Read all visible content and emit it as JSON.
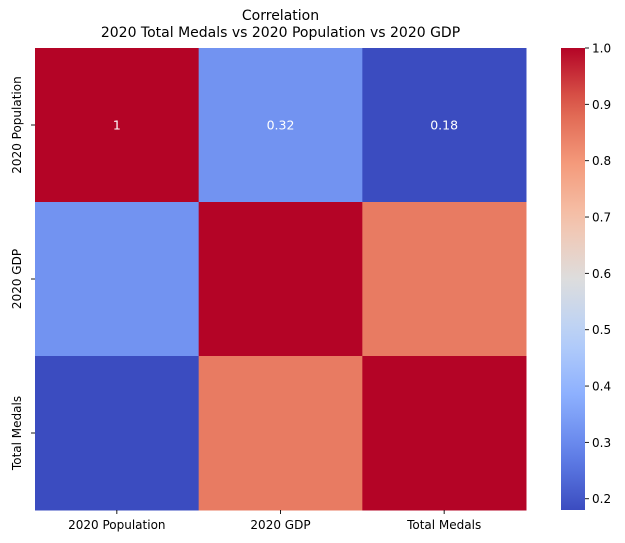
{
  "chart_data": {
    "type": "heatmap",
    "title": "Correlation\n2020 Total Medals vs 2020 Population vs 2020 GDP",
    "title_lines": [
      "Correlation",
      "2020 Total Medals vs 2020 Population vs 2020 GDP"
    ],
    "x_categories": [
      "2020 Population",
      "2020 GDP",
      "Total Medals"
    ],
    "y_categories": [
      "2020 Population",
      "2020 GDP",
      "Total Medals"
    ],
    "matrix": [
      [
        1.0,
        0.32,
        0.18
      ],
      [
        0.32,
        1.0,
        0.85
      ],
      [
        0.18,
        0.85,
        1.0
      ]
    ],
    "annotations": [
      [
        "1",
        "0.32",
        "0.18"
      ],
      [
        "",
        "",
        ""
      ],
      [
        "",
        "",
        ""
      ]
    ],
    "colormap": "coolwarm",
    "colorbar": {
      "vmin": 0.18,
      "vmax": 1.0,
      "ticks": [
        "0.2",
        "0.3",
        "0.4",
        "0.5",
        "0.6",
        "0.7",
        "0.8",
        "0.9",
        "1.0"
      ]
    },
    "grid": false,
    "legend": "colorbar-right"
  }
}
